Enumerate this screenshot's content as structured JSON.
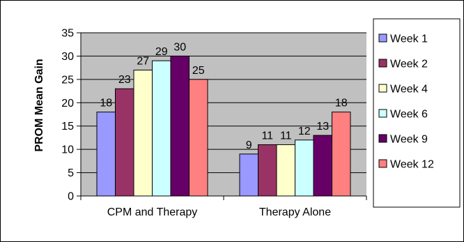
{
  "chart_data": {
    "type": "bar",
    "title": "",
    "xlabel": "",
    "ylabel": "PROM Mean Gain",
    "categories": [
      "CPM and Therapy",
      "Therapy Alone"
    ],
    "ylim": [
      0,
      35
    ],
    "yticks": [
      0,
      5,
      10,
      15,
      20,
      25,
      30,
      35
    ],
    "grid": true,
    "legend_position": "right",
    "plot_background": "#c0c0c0",
    "series": [
      {
        "name": "Week 1",
        "values": [
          18,
          9
        ],
        "color": "#9999ff"
      },
      {
        "name": "Week 2",
        "values": [
          23,
          11
        ],
        "color": "#993366"
      },
      {
        "name": "Week 4",
        "values": [
          27,
          11
        ],
        "color": "#ffffcc"
      },
      {
        "name": "Week 6",
        "values": [
          29,
          12
        ],
        "color": "#ccffff"
      },
      {
        "name": "Week 9",
        "values": [
          30,
          13
        ],
        "color": "#660066"
      },
      {
        "name": "Week 12",
        "values": [
          25,
          18
        ],
        "color": "#ff8080"
      }
    ]
  }
}
